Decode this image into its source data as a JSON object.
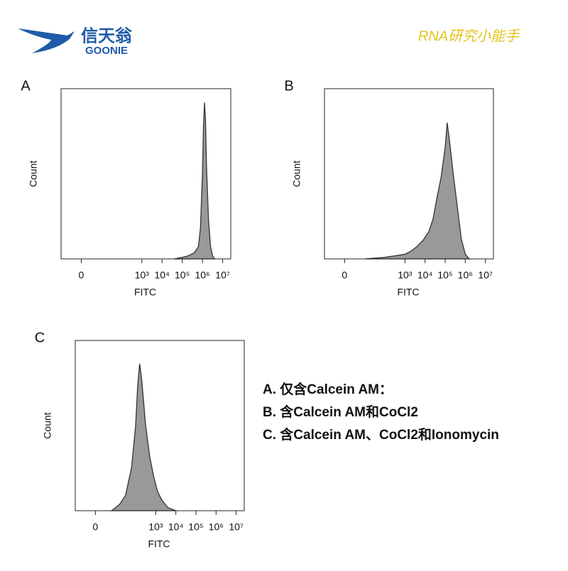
{
  "header": {
    "logo_cn": "信天翁",
    "logo_en": "GOONIE",
    "signature": "RNA研究小能手"
  },
  "chart_data": [
    {
      "type": "area",
      "panel": "A",
      "xlabel": "FITC",
      "ylabel": "Count",
      "color": "#999999",
      "line_color": "#333333",
      "xlim": [
        -1,
        7.4
      ],
      "ylim": [
        0,
        110
      ],
      "xticks": [
        0,
        {
          "value": 3,
          "label": "10³"
        },
        {
          "value": 4,
          "label": "10⁴"
        },
        {
          "value": 5,
          "label": "10⁵"
        },
        {
          "value": 6,
          "label": "10⁶"
        },
        {
          "value": 7,
          "label": "10⁷"
        }
      ],
      "x": [
        4.6,
        5.0,
        5.3,
        5.6,
        5.8,
        5.9,
        6.0,
        6.05,
        6.1,
        6.15,
        6.2,
        6.3,
        6.4,
        6.5,
        6.6
      ],
      "values": [
        0,
        1,
        2,
        4,
        8,
        20,
        55,
        85,
        101,
        90,
        60,
        25,
        8,
        2,
        0
      ]
    },
    {
      "type": "area",
      "panel": "B",
      "xlabel": "FITC",
      "ylabel": "Count",
      "color": "#999999",
      "line_color": "#333333",
      "xlim": [
        -1,
        7.4
      ],
      "ylim": [
        0,
        110
      ],
      "xticks": [
        0,
        {
          "value": 3,
          "label": "10³"
        },
        {
          "value": 4,
          "label": "10⁴"
        },
        {
          "value": 5,
          "label": "10⁵"
        },
        {
          "value": 6,
          "label": "10⁶"
        },
        {
          "value": 7,
          "label": "10⁷"
        }
      ],
      "x": [
        1.0,
        2.0,
        2.5,
        3.0,
        3.3,
        3.6,
        3.9,
        4.2,
        4.4,
        4.6,
        4.8,
        5.0,
        5.1,
        5.2,
        5.4,
        5.6,
        5.8,
        6.0,
        6.2
      ],
      "values": [
        0,
        1,
        2,
        3,
        5,
        8,
        12,
        18,
        26,
        40,
        53,
        72,
        88,
        78,
        55,
        34,
        13,
        3,
        0
      ]
    },
    {
      "type": "area",
      "panel": "C",
      "xlabel": "FITC",
      "ylabel": "Count",
      "color": "#999999",
      "line_color": "#333333",
      "xlim": [
        -1,
        7.4
      ],
      "ylim": [
        0,
        110
      ],
      "xticks": [
        0,
        {
          "value": 3,
          "label": "10³"
        },
        {
          "value": 4,
          "label": "10⁴"
        },
        {
          "value": 5,
          "label": "10⁵"
        },
        {
          "value": 6,
          "label": "10⁶"
        },
        {
          "value": 7,
          "label": "10⁷"
        }
      ],
      "x": [
        0.8,
        1.2,
        1.5,
        1.8,
        2.0,
        2.1,
        2.2,
        2.3,
        2.5,
        2.7,
        2.9,
        3.1,
        3.3,
        3.6,
        4.0
      ],
      "values": [
        0,
        4,
        10,
        28,
        55,
        80,
        95,
        85,
        55,
        35,
        22,
        12,
        7,
        2,
        0
      ]
    }
  ],
  "legend": [
    "A. 仅含Calcein AM：",
    "B. 含Calcein AM和CoCl2",
    "C. 含Calcein AM、CoCl2和Ionomycin"
  ]
}
